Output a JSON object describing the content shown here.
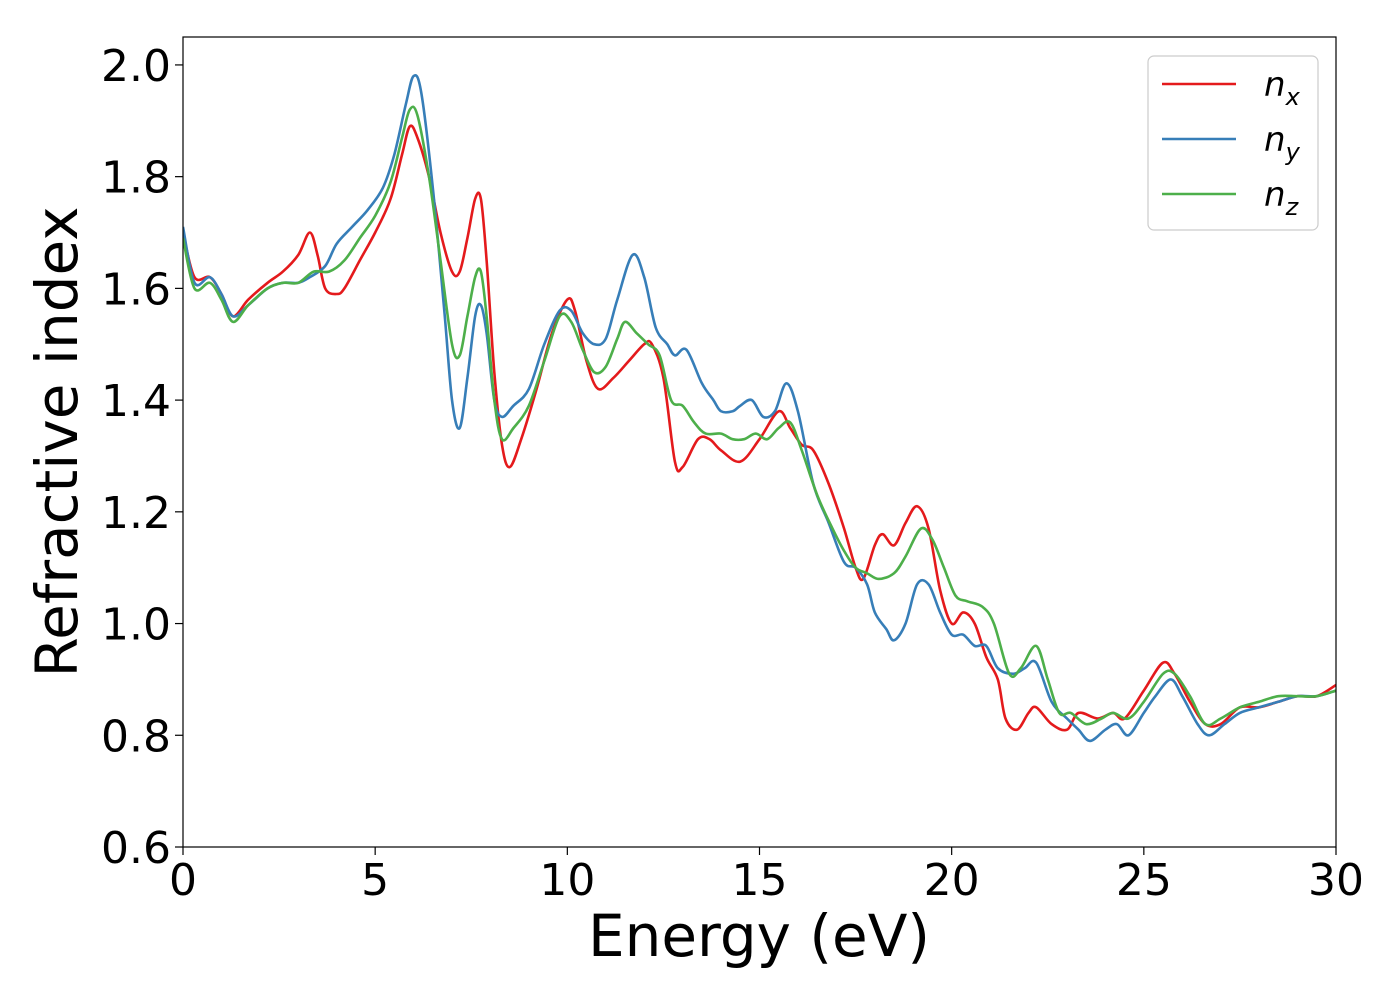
{
  "chart_data": {
    "type": "line",
    "title": "",
    "xlabel": "Energy (eV)",
    "ylabel": "Refractive index",
    "xlim": [
      0,
      30
    ],
    "ylim": [
      0.6,
      2.05
    ],
    "xticks": [
      0,
      5,
      10,
      15,
      20,
      25,
      30
    ],
    "yticks": [
      0.6,
      0.8,
      1.0,
      1.2,
      1.4,
      1.6,
      1.8,
      2.0
    ],
    "ytick_labels": [
      "0.6",
      "0.8",
      "1.0",
      "1.2",
      "1.4",
      "1.6",
      "1.8",
      "2.0"
    ],
    "grid": false,
    "legend_position": "top-right",
    "series": [
      {
        "name": "n",
        "subscript": "x",
        "color": "#e41a1c",
        "points": [
          [
            0,
            1.7
          ],
          [
            0.3,
            1.62
          ],
          [
            0.7,
            1.62
          ],
          [
            1.0,
            1.59
          ],
          [
            1.3,
            1.55
          ],
          [
            1.7,
            1.58
          ],
          [
            2.2,
            1.61
          ],
          [
            2.6,
            1.63
          ],
          [
            3.0,
            1.66
          ],
          [
            3.3,
            1.7
          ],
          [
            3.5,
            1.66
          ],
          [
            3.7,
            1.6
          ],
          [
            4.0,
            1.59
          ],
          [
            4.2,
            1.6
          ],
          [
            4.6,
            1.65
          ],
          [
            5.0,
            1.7
          ],
          [
            5.4,
            1.76
          ],
          [
            5.7,
            1.84
          ],
          [
            5.9,
            1.89
          ],
          [
            6.1,
            1.87
          ],
          [
            6.4,
            1.8
          ],
          [
            6.7,
            1.7
          ],
          [
            7.0,
            1.63
          ],
          [
            7.2,
            1.63
          ],
          [
            7.4,
            1.69
          ],
          [
            7.6,
            1.76
          ],
          [
            7.75,
            1.76
          ],
          [
            7.9,
            1.65
          ],
          [
            8.1,
            1.45
          ],
          [
            8.3,
            1.32
          ],
          [
            8.5,
            1.28
          ],
          [
            8.8,
            1.33
          ],
          [
            9.2,
            1.42
          ],
          [
            9.6,
            1.52
          ],
          [
            10.0,
            1.58
          ],
          [
            10.2,
            1.56
          ],
          [
            10.5,
            1.47
          ],
          [
            10.8,
            1.42
          ],
          [
            11.2,
            1.44
          ],
          [
            11.6,
            1.47
          ],
          [
            12.0,
            1.5
          ],
          [
            12.2,
            1.5
          ],
          [
            12.5,
            1.44
          ],
          [
            12.8,
            1.29
          ],
          [
            13.0,
            1.28
          ],
          [
            13.4,
            1.33
          ],
          [
            13.7,
            1.33
          ],
          [
            14.0,
            1.31
          ],
          [
            14.5,
            1.29
          ],
          [
            15.0,
            1.33
          ],
          [
            15.5,
            1.38
          ],
          [
            15.8,
            1.35
          ],
          [
            16.1,
            1.32
          ],
          [
            16.4,
            1.31
          ],
          [
            16.8,
            1.25
          ],
          [
            17.2,
            1.17
          ],
          [
            17.5,
            1.1
          ],
          [
            17.7,
            1.08
          ],
          [
            18.0,
            1.14
          ],
          [
            18.2,
            1.16
          ],
          [
            18.5,
            1.14
          ],
          [
            18.8,
            1.18
          ],
          [
            19.1,
            1.21
          ],
          [
            19.4,
            1.17
          ],
          [
            19.7,
            1.06
          ],
          [
            20.0,
            1.0
          ],
          [
            20.3,
            1.02
          ],
          [
            20.6,
            1.0
          ],
          [
            20.9,
            0.94
          ],
          [
            21.2,
            0.9
          ],
          [
            21.4,
            0.83
          ],
          [
            21.7,
            0.81
          ],
          [
            22.0,
            0.84
          ],
          [
            22.2,
            0.85
          ],
          [
            22.6,
            0.82
          ],
          [
            23.0,
            0.81
          ],
          [
            23.3,
            0.84
          ],
          [
            23.8,
            0.83
          ],
          [
            24.2,
            0.84
          ],
          [
            24.5,
            0.83
          ],
          [
            25.0,
            0.88
          ],
          [
            25.5,
            0.93
          ],
          [
            25.8,
            0.91
          ],
          [
            26.2,
            0.86
          ],
          [
            26.6,
            0.82
          ],
          [
            27.0,
            0.82
          ],
          [
            27.5,
            0.85
          ],
          [
            28.0,
            0.85
          ],
          [
            28.5,
            0.86
          ],
          [
            29.0,
            0.87
          ],
          [
            29.5,
            0.87
          ],
          [
            30.0,
            0.89
          ]
        ]
      },
      {
        "name": "n",
        "subscript": "y",
        "color": "#377eb8",
        "points": [
          [
            0,
            1.71
          ],
          [
            0.3,
            1.61
          ],
          [
            0.7,
            1.62
          ],
          [
            1.0,
            1.59
          ],
          [
            1.3,
            1.55
          ],
          [
            1.7,
            1.57
          ],
          [
            2.2,
            1.6
          ],
          [
            2.6,
            1.61
          ],
          [
            3.0,
            1.61
          ],
          [
            3.3,
            1.62
          ],
          [
            3.7,
            1.64
          ],
          [
            4.0,
            1.68
          ],
          [
            4.4,
            1.71
          ],
          [
            4.8,
            1.74
          ],
          [
            5.2,
            1.78
          ],
          [
            5.5,
            1.84
          ],
          [
            5.8,
            1.93
          ],
          [
            6.0,
            1.98
          ],
          [
            6.2,
            1.95
          ],
          [
            6.5,
            1.78
          ],
          [
            6.8,
            1.56
          ],
          [
            7.0,
            1.4
          ],
          [
            7.2,
            1.35
          ],
          [
            7.4,
            1.44
          ],
          [
            7.6,
            1.55
          ],
          [
            7.75,
            1.57
          ],
          [
            7.9,
            1.52
          ],
          [
            8.1,
            1.4
          ],
          [
            8.3,
            1.37
          ],
          [
            8.6,
            1.39
          ],
          [
            9.0,
            1.42
          ],
          [
            9.4,
            1.5
          ],
          [
            9.8,
            1.56
          ],
          [
            10.1,
            1.56
          ],
          [
            10.4,
            1.52
          ],
          [
            10.7,
            1.5
          ],
          [
            11.0,
            1.51
          ],
          [
            11.3,
            1.58
          ],
          [
            11.7,
            1.66
          ],
          [
            12.0,
            1.62
          ],
          [
            12.3,
            1.53
          ],
          [
            12.6,
            1.5
          ],
          [
            12.8,
            1.48
          ],
          [
            13.1,
            1.49
          ],
          [
            13.5,
            1.43
          ],
          [
            13.8,
            1.4
          ],
          [
            14.0,
            1.38
          ],
          [
            14.3,
            1.38
          ],
          [
            14.5,
            1.39
          ],
          [
            14.8,
            1.4
          ],
          [
            15.1,
            1.37
          ],
          [
            15.4,
            1.38
          ],
          [
            15.7,
            1.43
          ],
          [
            16.0,
            1.38
          ],
          [
            16.4,
            1.25
          ],
          [
            16.8,
            1.18
          ],
          [
            17.2,
            1.11
          ],
          [
            17.5,
            1.1
          ],
          [
            17.8,
            1.07
          ],
          [
            18.0,
            1.02
          ],
          [
            18.3,
            0.99
          ],
          [
            18.5,
            0.97
          ],
          [
            18.8,
            1.0
          ],
          [
            19.1,
            1.07
          ],
          [
            19.4,
            1.07
          ],
          [
            19.7,
            1.02
          ],
          [
            20.0,
            0.98
          ],
          [
            20.3,
            0.98
          ],
          [
            20.6,
            0.96
          ],
          [
            20.9,
            0.96
          ],
          [
            21.2,
            0.92
          ],
          [
            21.6,
            0.91
          ],
          [
            21.9,
            0.92
          ],
          [
            22.2,
            0.93
          ],
          [
            22.6,
            0.86
          ],
          [
            23.0,
            0.83
          ],
          [
            23.3,
            0.81
          ],
          [
            23.6,
            0.79
          ],
          [
            24.0,
            0.81
          ],
          [
            24.3,
            0.82
          ],
          [
            24.6,
            0.8
          ],
          [
            25.0,
            0.84
          ],
          [
            25.3,
            0.87
          ],
          [
            25.7,
            0.9
          ],
          [
            26.0,
            0.87
          ],
          [
            26.4,
            0.82
          ],
          [
            26.7,
            0.8
          ],
          [
            27.1,
            0.82
          ],
          [
            27.5,
            0.84
          ],
          [
            28.0,
            0.85
          ],
          [
            28.5,
            0.86
          ],
          [
            29.0,
            0.87
          ],
          [
            29.5,
            0.87
          ],
          [
            30.0,
            0.88
          ]
        ]
      },
      {
        "name": "n",
        "subscript": "z",
        "color": "#4daf4a",
        "points": [
          [
            0,
            1.69
          ],
          [
            0.3,
            1.6
          ],
          [
            0.7,
            1.61
          ],
          [
            1.0,
            1.58
          ],
          [
            1.3,
            1.54
          ],
          [
            1.7,
            1.57
          ],
          [
            2.2,
            1.6
          ],
          [
            2.6,
            1.61
          ],
          [
            3.0,
            1.61
          ],
          [
            3.4,
            1.63
          ],
          [
            3.8,
            1.63
          ],
          [
            4.2,
            1.65
          ],
          [
            4.6,
            1.69
          ],
          [
            5.0,
            1.73
          ],
          [
            5.4,
            1.79
          ],
          [
            5.7,
            1.87
          ],
          [
            5.9,
            1.92
          ],
          [
            6.1,
            1.91
          ],
          [
            6.4,
            1.8
          ],
          [
            6.7,
            1.65
          ],
          [
            7.0,
            1.5
          ],
          [
            7.2,
            1.48
          ],
          [
            7.4,
            1.55
          ],
          [
            7.6,
            1.62
          ],
          [
            7.75,
            1.63
          ],
          [
            7.9,
            1.55
          ],
          [
            8.1,
            1.4
          ],
          [
            8.3,
            1.33
          ],
          [
            8.6,
            1.35
          ],
          [
            9.0,
            1.39
          ],
          [
            9.4,
            1.47
          ],
          [
            9.8,
            1.55
          ],
          [
            10.1,
            1.54
          ],
          [
            10.4,
            1.49
          ],
          [
            10.7,
            1.45
          ],
          [
            11.0,
            1.46
          ],
          [
            11.3,
            1.51
          ],
          [
            11.5,
            1.54
          ],
          [
            11.8,
            1.52
          ],
          [
            12.1,
            1.5
          ],
          [
            12.4,
            1.48
          ],
          [
            12.7,
            1.4
          ],
          [
            13.0,
            1.39
          ],
          [
            13.3,
            1.36
          ],
          [
            13.6,
            1.34
          ],
          [
            14.0,
            1.34
          ],
          [
            14.3,
            1.33
          ],
          [
            14.6,
            1.33
          ],
          [
            14.9,
            1.34
          ],
          [
            15.2,
            1.33
          ],
          [
            15.5,
            1.35
          ],
          [
            15.8,
            1.36
          ],
          [
            16.1,
            1.31
          ],
          [
            16.5,
            1.23
          ],
          [
            16.9,
            1.17
          ],
          [
            17.2,
            1.13
          ],
          [
            17.5,
            1.1
          ],
          [
            17.8,
            1.09
          ],
          [
            18.1,
            1.08
          ],
          [
            18.5,
            1.09
          ],
          [
            18.8,
            1.12
          ],
          [
            19.2,
            1.17
          ],
          [
            19.5,
            1.15
          ],
          [
            19.8,
            1.1
          ],
          [
            20.1,
            1.05
          ],
          [
            20.4,
            1.04
          ],
          [
            20.8,
            1.03
          ],
          [
            21.1,
            1.0
          ],
          [
            21.5,
            0.91
          ],
          [
            21.8,
            0.92
          ],
          [
            22.2,
            0.96
          ],
          [
            22.5,
            0.9
          ],
          [
            22.8,
            0.84
          ],
          [
            23.1,
            0.84
          ],
          [
            23.5,
            0.82
          ],
          [
            23.9,
            0.83
          ],
          [
            24.2,
            0.84
          ],
          [
            24.6,
            0.83
          ],
          [
            25.0,
            0.86
          ],
          [
            25.5,
            0.91
          ],
          [
            25.8,
            0.91
          ],
          [
            26.2,
            0.87
          ],
          [
            26.6,
            0.82
          ],
          [
            27.0,
            0.83
          ],
          [
            27.5,
            0.85
          ],
          [
            28.0,
            0.86
          ],
          [
            28.5,
            0.87
          ],
          [
            29.0,
            0.87
          ],
          [
            29.5,
            0.87
          ],
          [
            30.0,
            0.88
          ]
        ]
      }
    ]
  }
}
